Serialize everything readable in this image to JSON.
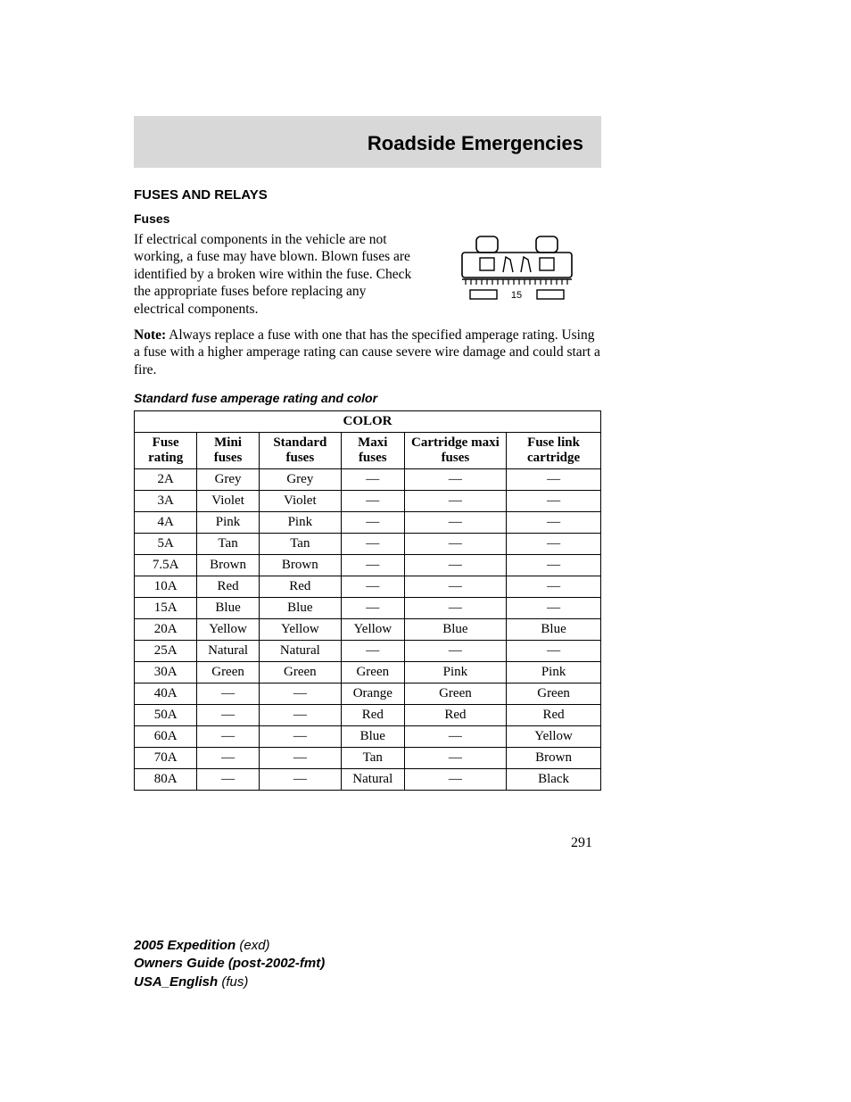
{
  "header": {
    "title": "Roadside Emergencies"
  },
  "section": {
    "heading": "FUSES AND RELAYS"
  },
  "fuses": {
    "heading": "Fuses",
    "intro": "If electrical components in the vehicle are not working, a fuse may have blown. Blown fuses are identified by a broken wire within the fuse. Check the appropriate fuses before replacing any electrical components.",
    "note_label": "Note:",
    "note_text": " Always replace a fuse with one that has the specified amperage rating. Using a fuse with a higher amperage rating can cause severe wire damage and could start a fire."
  },
  "fuse_illustration": {
    "label": "15"
  },
  "table": {
    "heading": "Standard fuse amperage rating and color",
    "super_header": "COLOR",
    "columns": [
      "Fuse rating",
      "Mini fuses",
      "Standard fuses",
      "Maxi fuses",
      "Cartridge maxi fuses",
      "Fuse link cartridge"
    ],
    "rows": [
      [
        "2A",
        "Grey",
        "Grey",
        "—",
        "—",
        "—"
      ],
      [
        "3A",
        "Violet",
        "Violet",
        "—",
        "—",
        "—"
      ],
      [
        "4A",
        "Pink",
        "Pink",
        "—",
        "—",
        "—"
      ],
      [
        "5A",
        "Tan",
        "Tan",
        "—",
        "—",
        "—"
      ],
      [
        "7.5A",
        "Brown",
        "Brown",
        "—",
        "—",
        "—"
      ],
      [
        "10A",
        "Red",
        "Red",
        "—",
        "—",
        "—"
      ],
      [
        "15A",
        "Blue",
        "Blue",
        "—",
        "—",
        "—"
      ],
      [
        "20A",
        "Yellow",
        "Yellow",
        "Yellow",
        "Blue",
        "Blue"
      ],
      [
        "25A",
        "Natural",
        "Natural",
        "—",
        "—",
        "—"
      ],
      [
        "30A",
        "Green",
        "Green",
        "Green",
        "Pink",
        "Pink"
      ],
      [
        "40A",
        "—",
        "—",
        "Orange",
        "Green",
        "Green"
      ],
      [
        "50A",
        "—",
        "—",
        "Red",
        "Red",
        "Red"
      ],
      [
        "60A",
        "—",
        "—",
        "Blue",
        "—",
        "Yellow"
      ],
      [
        "70A",
        "—",
        "—",
        "Tan",
        "—",
        "Brown"
      ],
      [
        "80A",
        "—",
        "—",
        "Natural",
        "—",
        "Black"
      ]
    ]
  },
  "page_number": "291",
  "footer": {
    "line1_bold": "2005 Expedition ",
    "line1_ital": "(exd)",
    "line2_bold": "Owners Guide (post-2002-fmt)",
    "line3_bold": "USA_English ",
    "line3_ital": "(fus)"
  }
}
